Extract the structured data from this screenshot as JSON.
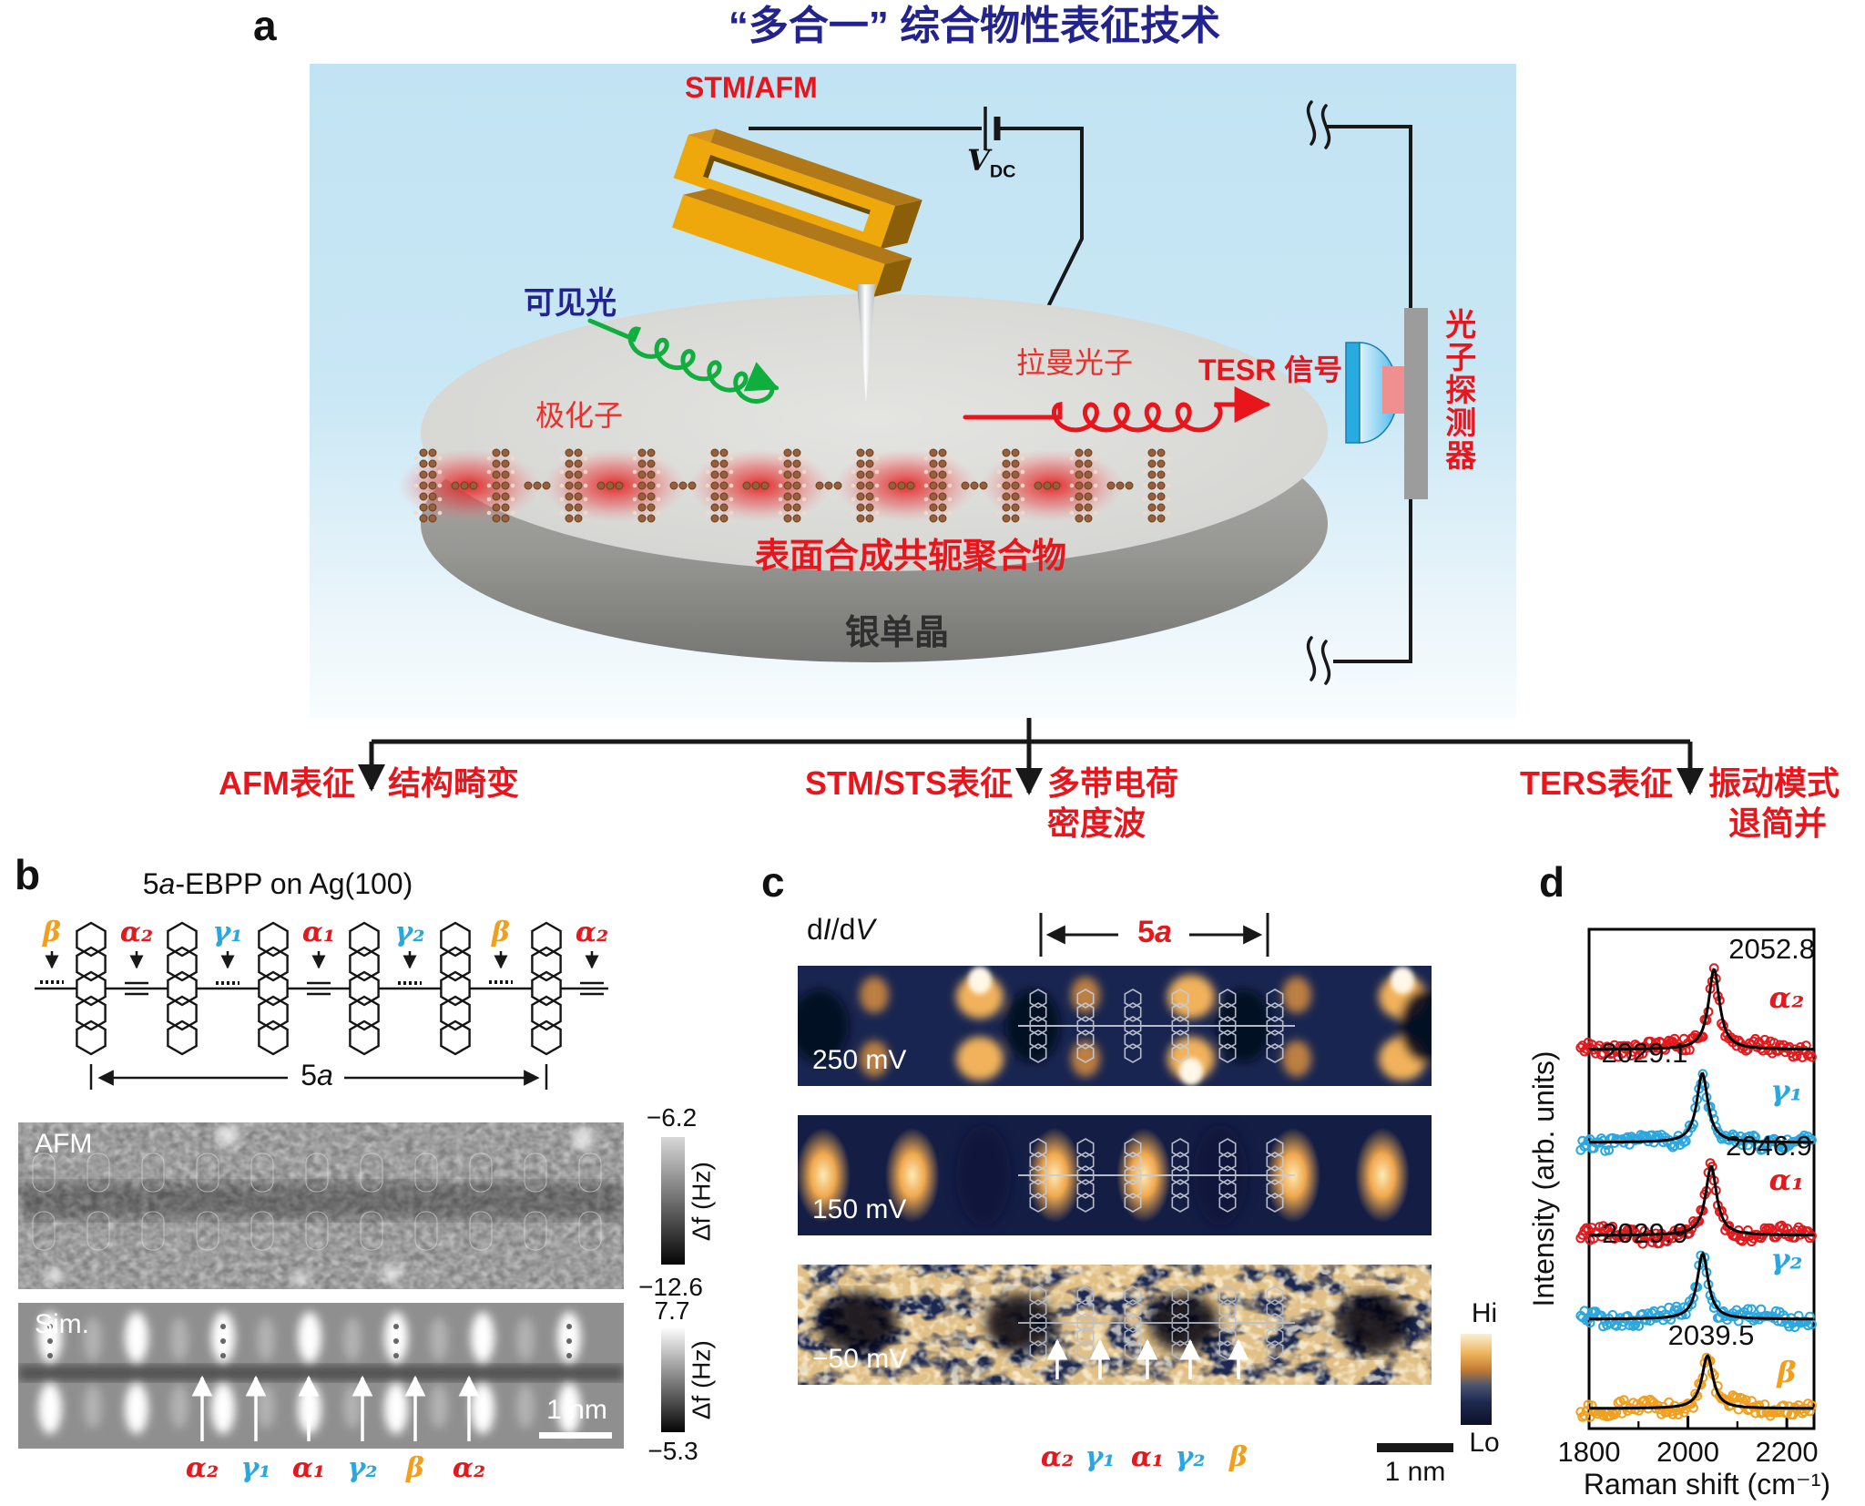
{
  "panel_a": {
    "label": "a",
    "title": "“多合一” 综合物性表征技术",
    "probe_label": "STM/AFM",
    "bias_v": "V",
    "bias_sub": "DC",
    "visible_light": "可见光",
    "polaron": "极化子",
    "raman_photon": "拉曼光子",
    "tesr_signal": "TESR 信号",
    "photon_detector": "光子探测器",
    "polymer": "表面合成共轭聚合物",
    "silver_crystal": "银单晶",
    "branches": [
      {
        "technique": "AFM表征",
        "result_line1": "结构畸变",
        "result_line2": ""
      },
      {
        "technique": "STM/STS表征",
        "result_line1": "多带电荷",
        "result_line2": "密度波"
      },
      {
        "technique": "TERS表征",
        "result_line1": "振动模式",
        "result_line2": "退简并"
      }
    ]
  },
  "panel_b": {
    "label": "b",
    "title_pre": "5",
    "title_it": "a",
    "title_post": "-EBPP on Ag(100)",
    "bond_labels": [
      {
        "text": "β",
        "color": "#f0a01e"
      },
      {
        "text": "α₂",
        "color": "#e3191e"
      },
      {
        "text": "γ₁",
        "color": "#2ba7e0"
      },
      {
        "text": "α₁",
        "color": "#e3191e"
      },
      {
        "text": "γ₂",
        "color": "#2ba7e0"
      },
      {
        "text": "β",
        "color": "#f0a01e"
      },
      {
        "text": "α₂",
        "color": "#e3191e"
      }
    ],
    "span_num": "5",
    "span_it": "a",
    "afm": {
      "label": "AFM",
      "scale_top": "−6.2",
      "scale_bottom": "−12.6",
      "scale_unit": "Δf (Hz)"
    },
    "sim": {
      "label": "Sim.",
      "scale_top": "7.7",
      "scale_bottom": "−5.3",
      "scale_unit": "Δf (Hz)",
      "scalebar": "1 nm",
      "mode_labels": [
        {
          "text": "α₂",
          "color": "#e3191e"
        },
        {
          "text": "γ₁",
          "color": "#2ba7e0"
        },
        {
          "text": "α₁",
          "color": "#e3191e"
        },
        {
          "text": "γ₂",
          "color": "#2ba7e0"
        },
        {
          "text": "β",
          "color": "#f0a01e"
        },
        {
          "text": "α₂",
          "color": "#e3191e"
        }
      ]
    }
  },
  "panel_c": {
    "label": "c",
    "map_d1": "d",
    "map_i": "I",
    "map_d2": "/d",
    "map_v": "V",
    "span_num": "5",
    "span_it": "a",
    "span_color": "#e3191e",
    "biases": [
      "250 mV",
      "150 mV",
      "−50 mV"
    ],
    "colorbar_hi": "Hi",
    "colorbar_lo": "Lo",
    "scalebar": "1 nm",
    "mode_labels": [
      {
        "text": "α₂",
        "color": "#e3191e"
      },
      {
        "text": "γ₁",
        "color": "#2ba7e0"
      },
      {
        "text": "α₁",
        "color": "#e3191e"
      },
      {
        "text": "γ₂",
        "color": "#2ba7e0"
      },
      {
        "text": "β",
        "color": "#f0a01e"
      }
    ]
  },
  "panel_d": {
    "label": "d",
    "chart_data": {
      "type": "scatter",
      "xlabel": "Raman shift (cm⁻¹)",
      "ylabel": "Intensity (arb. units)",
      "xlim": [
        1800,
        2255
      ],
      "xticks": [
        1800,
        2000,
        2200
      ],
      "xticks_minor": [
        1900,
        2100
      ],
      "grid": false,
      "legend": "inline-right",
      "fit_color": "#000000",
      "series": [
        {
          "name": "α₂",
          "color": "#e3191e",
          "peak_center": 2052.8,
          "peak_label": "2052.8",
          "label_side": "right"
        },
        {
          "name": "γ₁",
          "color": "#2ba7e0",
          "peak_center": 2029.1,
          "peak_label": "2029.1",
          "label_side": "left"
        },
        {
          "name": "α₁",
          "color": "#e3191e",
          "peak_center": 2046.9,
          "peak_label": "2046.9",
          "label_side": "right"
        },
        {
          "name": "γ₂",
          "color": "#2ba7e0",
          "peak_center": 2029.9,
          "peak_label": "2029.9",
          "label_side": "left"
        },
        {
          "name": "β",
          "color": "#f0a01e",
          "peak_center": 2039.5,
          "peak_label": "2039.5",
          "label_side": "center"
        }
      ]
    }
  }
}
